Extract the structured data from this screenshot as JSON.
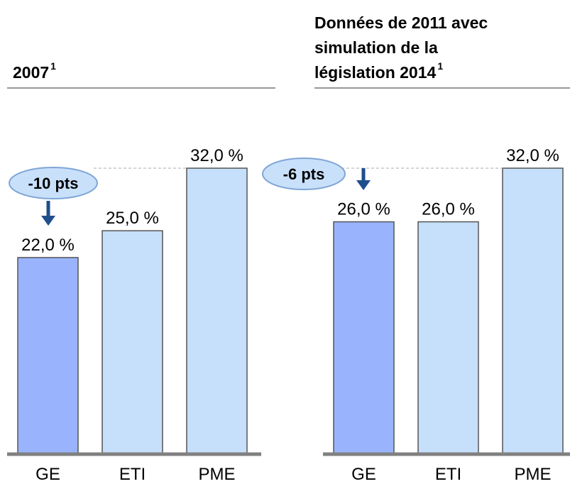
{
  "chart_data": [
    {
      "type": "bar",
      "title": [
        "2007"
      ],
      "title_sup": "1",
      "categories": [
        "GE",
        "ETI",
        "PME"
      ],
      "values": [
        22,
        25,
        32
      ],
      "value_labels": [
        "22,0 %",
        "25,0 %",
        "32,0 %"
      ],
      "colors": [
        "#99b4fd",
        "#c6dffa",
        "#c6dffa"
      ],
      "annotation": "-10 pts",
      "ylim": [
        0,
        32
      ]
    },
    {
      "type": "bar",
      "title": [
        "Données de 2011 avec",
        "simulation de la",
        "législation 2014"
      ],
      "title_sup": "1",
      "categories": [
        "GE",
        "ETI",
        "PME"
      ],
      "values": [
        26,
        26,
        32
      ],
      "value_labels": [
        "26,0 %",
        "26,0 %",
        "32,0 %"
      ],
      "colors": [
        "#99b4fd",
        "#c6dffa",
        "#c6dffa"
      ],
      "annotation": "-6 pts",
      "ylim": [
        0,
        32
      ]
    }
  ]
}
